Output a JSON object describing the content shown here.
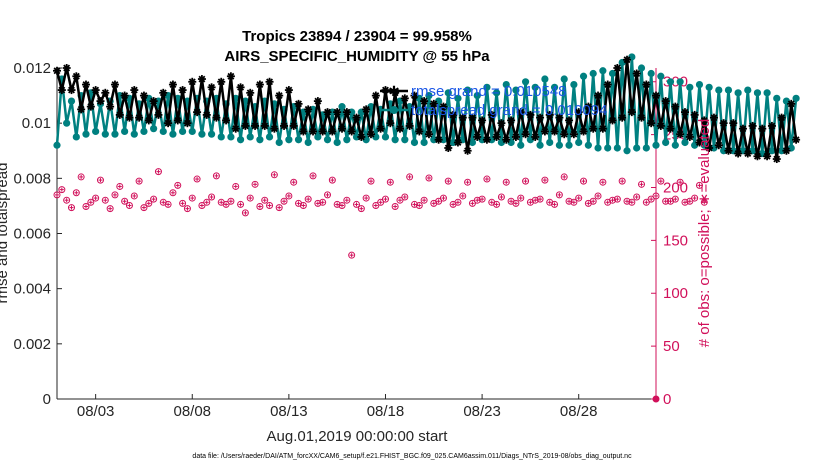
{
  "chart_data": {
    "type": "line",
    "title": "Tropics 23894 / 23904 = 99.958%",
    "subtitle": "AIRS_SPECIFIC_HUMIDITY @ 55 hPa",
    "xlabel": "Aug.01,2019 00:00:00 start",
    "ylabel": "rmse and totalspread",
    "ylabel_right": "# of obs: o=possible; ∗=evaluated",
    "footnote": "data file: /Users/raeder/DAI/ATM_forcXX/CAM6_setup/f.e21.FHIST_BGC.f09_025.CAM6assim.011/Diags_NTrS_2019-08/obs_diag_output.nc",
    "x_ticks": [
      "08/03",
      "08/08",
      "08/13",
      "08/18",
      "08/23",
      "08/28"
    ],
    "x_tick_days": [
      3,
      8,
      13,
      18,
      23,
      28
    ],
    "xlim": [
      1.0,
      32.0
    ],
    "ylim": [
      0,
      0.012
    ],
    "y_ticks": [
      "0",
      "0.002",
      "0.004",
      "0.006",
      "0.008",
      "0.01",
      "0.012"
    ],
    "y_tick_values": [
      0,
      0.002,
      0.004,
      0.006,
      0.008,
      0.01,
      0.012
    ],
    "ylim_right": [
      0,
      313
    ],
    "y_ticks_right": [
      "0",
      "50",
      "100",
      "150",
      "200",
      "250",
      "300"
    ],
    "y_tick_values_right": [
      0,
      50,
      100,
      150,
      200,
      250,
      300
    ],
    "legend": [
      {
        "label": "rmse grand  =  0.010548",
        "color": "#000000"
      },
      {
        "label": "totalspread grand  =  0.010094",
        "color": "#008080"
      }
    ],
    "series": [
      {
        "name": "rmse",
        "color": "#000000",
        "marker": "asterisk",
        "axis": "left",
        "x_start": 1.0,
        "x_step": 0.25,
        "values": [
          0.0119,
          0.0112,
          0.012,
          0.0112,
          0.0117,
          0.0105,
          0.0114,
          0.0106,
          0.0112,
          0.0108,
          0.0111,
          0.0106,
          0.0114,
          0.0103,
          0.011,
          0.0102,
          0.0112,
          0.0102,
          0.011,
          0.0101,
          0.0108,
          0.0103,
          0.0111,
          0.01,
          0.0114,
          0.0101,
          0.0112,
          0.01,
          0.0115,
          0.0104,
          0.0116,
          0.0103,
          0.0113,
          0.0102,
          0.0115,
          0.0101,
          0.0117,
          0.0098,
          0.0113,
          0.0099,
          0.0111,
          0.0099,
          0.0114,
          0.0099,
          0.0115,
          0.0098,
          0.011,
          0.0099,
          0.0112,
          0.0099,
          0.0107,
          0.0097,
          0.0105,
          0.0097,
          0.0108,
          0.0097,
          0.0104,
          0.0097,
          0.0104,
          0.0098,
          0.0104,
          0.0097,
          0.0102,
          0.0095,
          0.0105,
          0.0096,
          0.011,
          0.0098,
          0.0112,
          0.01,
          0.0111,
          0.0098,
          0.0109,
          0.0099,
          0.011,
          0.0097,
          0.0108,
          0.0096,
          0.0107,
          0.0094,
          0.0106,
          0.0091,
          0.0103,
          0.0093,
          0.0102,
          0.009,
          0.0102,
          0.0095,
          0.0101,
          0.0094,
          0.0103,
          0.0095,
          0.01,
          0.0094,
          0.0101,
          0.0095,
          0.0104,
          0.0096,
          0.0103,
          0.0095,
          0.0102,
          0.0097,
          0.0103,
          0.0097,
          0.0102,
          0.0096,
          0.0101,
          0.0096,
          0.0104,
          0.0097,
          0.0106,
          0.0098,
          0.011,
          0.0098,
          0.0114,
          0.0101,
          0.012,
          0.0102,
          0.0123,
          0.0104,
          0.0118,
          0.0102,
          0.0114,
          0.01,
          0.011,
          0.0099,
          0.0108,
          0.0098,
          0.0106,
          0.0096,
          0.0104,
          0.0095,
          0.0103,
          0.0093,
          0.0101,
          0.0091,
          0.0102,
          0.0092,
          0.01,
          0.009,
          0.01,
          0.0089,
          0.0098,
          0.0089,
          0.0099,
          0.0088,
          0.0098,
          0.0088,
          0.0099,
          0.0087,
          0.0102,
          0.009,
          0.0107,
          0.0094
        ]
      },
      {
        "name": "totalspread",
        "color": "#008080",
        "marker": "circle",
        "axis": "left",
        "x_start": 1.0,
        "x_step": 0.25,
        "values": [
          0.0092,
          0.0116,
          0.01,
          0.0108,
          0.0095,
          0.011,
          0.0096,
          0.0111,
          0.0097,
          0.0107,
          0.0096,
          0.0108,
          0.0096,
          0.011,
          0.0097,
          0.0109,
          0.0096,
          0.0107,
          0.0097,
          0.0109,
          0.0098,
          0.0108,
          0.0097,
          0.011,
          0.0096,
          0.0109,
          0.0097,
          0.0108,
          0.0097,
          0.0109,
          0.0096,
          0.0108,
          0.0096,
          0.0109,
          0.0095,
          0.0107,
          0.0095,
          0.0109,
          0.0094,
          0.0108,
          0.0095,
          0.0106,
          0.0094,
          0.0108,
          0.0095,
          0.0107,
          0.0093,
          0.0105,
          0.0094,
          0.0106,
          0.0094,
          0.0104,
          0.0093,
          0.0105,
          0.0095,
          0.0103,
          0.0094,
          0.0104,
          0.0093,
          0.0106,
          0.0094,
          0.0104,
          0.0095,
          0.0104,
          0.0094,
          0.0106,
          0.0095,
          0.0105,
          0.0095,
          0.0107,
          0.0094,
          0.0108,
          0.0094,
          0.0106,
          0.0093,
          0.0109,
          0.0093,
          0.011,
          0.0094,
          0.0108,
          0.0094,
          0.0111,
          0.0093,
          0.0109,
          0.0094,
          0.0112,
          0.0093,
          0.011,
          0.0094,
          0.0113,
          0.0094,
          0.0111,
          0.0093,
          0.0114,
          0.0093,
          0.0112,
          0.0092,
          0.0115,
          0.0094,
          0.0113,
          0.0092,
          0.0116,
          0.0093,
          0.0113,
          0.0092,
          0.0116,
          0.0092,
          0.0114,
          0.0093,
          0.0117,
          0.0092,
          0.0118,
          0.0091,
          0.0119,
          0.0091,
          0.0118,
          0.0091,
          0.0122,
          0.009,
          0.0124,
          0.0091,
          0.012,
          0.0091,
          0.0118,
          0.0092,
          0.0117,
          0.0093,
          0.0115,
          0.0092,
          0.0115,
          0.0093,
          0.0113,
          0.0092,
          0.0114,
          0.0092,
          0.0113,
          0.0091,
          0.0112,
          0.009,
          0.0112,
          0.009,
          0.0111,
          0.009,
          0.0112,
          0.009,
          0.0111,
          0.0089,
          0.0111,
          0.009,
          0.0109,
          0.009,
          0.0108,
          0.0091,
          0.0109
        ]
      },
      {
        "name": "# obs possible",
        "color": "#d1105a",
        "marker": "circle-open",
        "axis": "right",
        "x_start": 1.0,
        "x_step": 0.25,
        "values": [
          193,
          198,
          188,
          181,
          195,
          210,
          182,
          186,
          190,
          207,
          188,
          180,
          193,
          201,
          187,
          183,
          192,
          206,
          181,
          185,
          189,
          215,
          186,
          184,
          195,
          202,
          185,
          180,
          190,
          208,
          183,
          186,
          191,
          211,
          186,
          184,
          187,
          201,
          184,
          176,
          190,
          203,
          182,
          188,
          183,
          212,
          181,
          187,
          192,
          205,
          185,
          183,
          189,
          211,
          185,
          186,
          193,
          207,
          184,
          183,
          188,
          136,
          184,
          180,
          190,
          206,
          183,
          186,
          189,
          205,
          182,
          188,
          191,
          210,
          184,
          183,
          188,
          209,
          185,
          187,
          190,
          206,
          184,
          186,
          192,
          205,
          185,
          188,
          189,
          208,
          186,
          184,
          191,
          205,
          187,
          185,
          190,
          206,
          186,
          188,
          189,
          207,
          186,
          184,
          193,
          210,
          187,
          186,
          190,
          206,
          185,
          187,
          192,
          205,
          186,
          188,
          189,
          206,
          187,
          186,
          191,
          203,
          186,
          189,
          192,
          206,
          187,
          187,
          189,
          205,
          186,
          187,
          190,
          202,
          186
        ]
      }
    ],
    "single_point_right": {
      "x": 32.0,
      "value": 0
    }
  }
}
